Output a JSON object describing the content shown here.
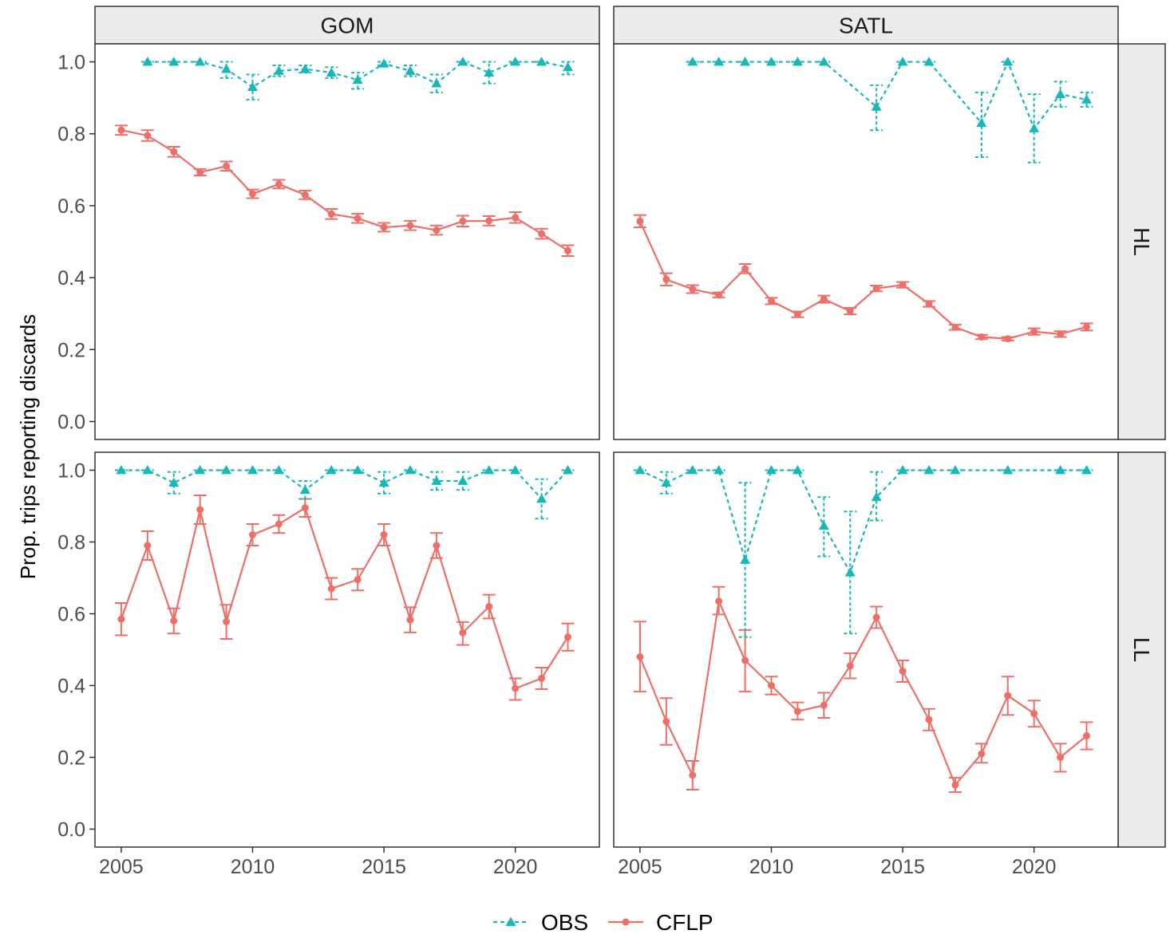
{
  "chart_data": {
    "type": "line",
    "ylabel": "Prop. trips reporting discards",
    "xlabel": "",
    "columns": [
      "GOM",
      "SATL"
    ],
    "rows": [
      "HL",
      "LL"
    ],
    "xlim": [
      2004.0,
      2023.2
    ],
    "ylim": [
      -0.05,
      1.05
    ],
    "xticks": [
      2005,
      2010,
      2015,
      2020
    ],
    "yticks": [
      0.0,
      0.2,
      0.4,
      0.6,
      0.8,
      1.0
    ],
    "ytick_labels": [
      "0.0",
      "0.2",
      "0.4",
      "0.6",
      "0.8",
      "1.0"
    ],
    "legend": {
      "position": "bottom",
      "items": [
        "OBS",
        "CFLP"
      ]
    },
    "series_styles": {
      "OBS": {
        "color": "#18B8B8",
        "linestyle": "dashed",
        "marker": "triangle"
      },
      "CFLP": {
        "color": "#EE6F68",
        "linestyle": "solid",
        "marker": "circle"
      }
    },
    "panels": [
      {
        "col": "GOM",
        "row": "HL",
        "series": [
          {
            "name": "OBS",
            "x": [
              2006,
              2007,
              2008,
              2009,
              2010,
              2011,
              2012,
              2013,
              2014,
              2015,
              2016,
              2017,
              2018,
              2019,
              2020,
              2021,
              2022
            ],
            "y": [
              1.0,
              1.0,
              1.0,
              0.98,
              0.93,
              0.975,
              0.98,
              0.97,
              0.95,
              0.995,
              0.975,
              0.94,
              1.0,
              0.97,
              1.0,
              1.0,
              0.985
            ],
            "lo": [
              1.0,
              1.0,
              1.0,
              0.955,
              0.895,
              0.96,
              0.97,
              0.955,
              0.925,
              0.99,
              0.96,
              0.915,
              1.0,
              0.94,
              1.0,
              1.0,
              0.965
            ],
            "hi": [
              1.0,
              1.0,
              1.0,
              1.0,
              0.965,
              0.99,
              0.99,
              0.985,
              0.97,
              1.0,
              0.99,
              0.965,
              1.0,
              1.0,
              1.0,
              1.0,
              1.0
            ]
          },
          {
            "name": "CFLP",
            "x": [
              2005,
              2006,
              2007,
              2008,
              2009,
              2010,
              2011,
              2012,
              2013,
              2014,
              2015,
              2016,
              2017,
              2018,
              2019,
              2020,
              2021,
              2022
            ],
            "y": [
              0.81,
              0.795,
              0.75,
              0.693,
              0.71,
              0.633,
              0.66,
              0.63,
              0.577,
              0.565,
              0.54,
              0.545,
              0.532,
              0.557,
              0.558,
              0.567,
              0.522,
              0.475
            ],
            "lo": [
              0.797,
              0.78,
              0.736,
              0.684,
              0.697,
              0.621,
              0.648,
              0.618,
              0.563,
              0.552,
              0.528,
              0.532,
              0.519,
              0.542,
              0.545,
              0.552,
              0.508,
              0.46
            ],
            "hi": [
              0.823,
              0.81,
              0.764,
              0.702,
              0.723,
              0.645,
              0.672,
              0.642,
              0.591,
              0.578,
              0.552,
              0.558,
              0.545,
              0.572,
              0.571,
              0.582,
              0.536,
              0.49
            ]
          }
        ]
      },
      {
        "col": "SATL",
        "row": "HL",
        "series": [
          {
            "name": "OBS",
            "x": [
              2007,
              2008,
              2009,
              2010,
              2011,
              2012,
              2014,
              2015,
              2016,
              2018,
              2019,
              2020,
              2021,
              2022
            ],
            "y": [
              1.0,
              1.0,
              1.0,
              1.0,
              1.0,
              1.0,
              0.875,
              1.0,
              1.0,
              0.83,
              1.0,
              0.815,
              0.91,
              0.895
            ],
            "lo": [
              1.0,
              1.0,
              1.0,
              1.0,
              1.0,
              1.0,
              0.81,
              1.0,
              1.0,
              0.735,
              1.0,
              0.72,
              0.875,
              0.875
            ],
            "hi": [
              1.0,
              1.0,
              1.0,
              1.0,
              1.0,
              1.0,
              0.935,
              1.0,
              1.0,
              0.915,
              1.0,
              0.91,
              0.945,
              0.915
            ]
          },
          {
            "name": "CFLP",
            "x": [
              2005,
              2006,
              2007,
              2008,
              2009,
              2010,
              2011,
              2012,
              2013,
              2014,
              2015,
              2016,
              2017,
              2018,
              2019,
              2020,
              2021,
              2022
            ],
            "y": [
              0.557,
              0.395,
              0.368,
              0.352,
              0.425,
              0.335,
              0.298,
              0.34,
              0.307,
              0.37,
              0.38,
              0.327,
              0.262,
              0.235,
              0.23,
              0.25,
              0.243,
              0.263
            ],
            "lo": [
              0.54,
              0.378,
              0.357,
              0.345,
              0.412,
              0.326,
              0.29,
              0.33,
              0.298,
              0.362,
              0.372,
              0.319,
              0.255,
              0.229,
              0.225,
              0.241,
              0.235,
              0.253
            ],
            "hi": [
              0.574,
              0.412,
              0.379,
              0.359,
              0.438,
              0.344,
              0.306,
              0.35,
              0.316,
              0.378,
              0.388,
              0.335,
              0.269,
              0.241,
              0.235,
              0.259,
              0.251,
              0.273
            ]
          }
        ]
      },
      {
        "col": "GOM",
        "row": "LL",
        "series": [
          {
            "name": "OBS",
            "x": [
              2005,
              2006,
              2007,
              2008,
              2009,
              2010,
              2011,
              2012,
              2013,
              2014,
              2015,
              2016,
              2017,
              2018,
              2019,
              2020,
              2021,
              2022
            ],
            "y": [
              1.0,
              1.0,
              0.965,
              1.0,
              1.0,
              1.0,
              1.0,
              0.945,
              1.0,
              1.0,
              0.965,
              1.0,
              0.97,
              0.97,
              1.0,
              1.0,
              0.92,
              1.0
            ],
            "lo": [
              1.0,
              1.0,
              0.935,
              1.0,
              1.0,
              1.0,
              1.0,
              0.92,
              1.0,
              1.0,
              0.935,
              1.0,
              0.945,
              0.945,
              1.0,
              1.0,
              0.865,
              1.0
            ],
            "hi": [
              1.0,
              1.0,
              0.995,
              1.0,
              1.0,
              1.0,
              1.0,
              0.97,
              1.0,
              1.0,
              0.995,
              1.0,
              0.995,
              0.995,
              1.0,
              1.0,
              0.975,
              1.0
            ]
          },
          {
            "name": "CFLP",
            "x": [
              2005,
              2006,
              2007,
              2008,
              2009,
              2010,
              2011,
              2012,
              2013,
              2014,
              2015,
              2016,
              2017,
              2018,
              2019,
              2020,
              2021,
              2022
            ],
            "y": [
              0.585,
              0.79,
              0.58,
              0.89,
              0.578,
              0.82,
              0.85,
              0.895,
              0.67,
              0.695,
              0.82,
              0.583,
              0.79,
              0.547,
              0.62,
              0.392,
              0.42,
              0.535
            ],
            "lo": [
              0.54,
              0.75,
              0.545,
              0.85,
              0.53,
              0.79,
              0.825,
              0.87,
              0.64,
              0.665,
              0.79,
              0.548,
              0.755,
              0.513,
              0.587,
              0.36,
              0.39,
              0.497
            ],
            "hi": [
              0.63,
              0.83,
              0.615,
              0.93,
              0.625,
              0.85,
              0.875,
              0.92,
              0.7,
              0.725,
              0.85,
              0.618,
              0.825,
              0.577,
              0.653,
              0.42,
              0.45,
              0.573
            ]
          }
        ]
      },
      {
        "col": "SATL",
        "row": "LL",
        "series": [
          {
            "name": "OBS",
            "x": [
              2005,
              2006,
              2007,
              2008,
              2009,
              2010,
              2011,
              2012,
              2013,
              2014,
              2015,
              2016,
              2017,
              2019,
              2021,
              2022
            ],
            "y": [
              1.0,
              0.965,
              1.0,
              1.0,
              0.75,
              1.0,
              1.0,
              0.845,
              0.715,
              0.925,
              1.0,
              1.0,
              1.0,
              1.0,
              1.0,
              1.0
            ],
            "lo": [
              1.0,
              0.935,
              1.0,
              1.0,
              0.535,
              1.0,
              1.0,
              0.76,
              0.545,
              0.86,
              1.0,
              1.0,
              1.0,
              1.0,
              1.0,
              1.0
            ],
            "hi": [
              1.0,
              0.995,
              1.0,
              1.0,
              0.965,
              1.0,
              1.0,
              0.925,
              0.885,
              0.995,
              1.0,
              1.0,
              1.0,
              1.0,
              1.0,
              1.0
            ]
          },
          {
            "name": "CFLP",
            "x": [
              2005,
              2006,
              2007,
              2008,
              2009,
              2010,
              2011,
              2012,
              2013,
              2014,
              2015,
              2016,
              2017,
              2018,
              2019,
              2020,
              2021,
              2022
            ],
            "y": [
              0.48,
              0.3,
              0.15,
              0.635,
              0.47,
              0.4,
              0.328,
              0.345,
              0.455,
              0.59,
              0.44,
              0.305,
              0.123,
              0.21,
              0.372,
              0.322,
              0.2,
              0.26
            ],
            "lo": [
              0.383,
              0.235,
              0.11,
              0.598,
              0.383,
              0.375,
              0.305,
              0.31,
              0.42,
              0.56,
              0.41,
              0.275,
              0.103,
              0.185,
              0.318,
              0.285,
              0.16,
              0.222
            ],
            "hi": [
              0.578,
              0.365,
              0.19,
              0.675,
              0.555,
              0.425,
              0.353,
              0.38,
              0.49,
              0.62,
              0.47,
              0.335,
              0.143,
              0.238,
              0.425,
              0.358,
              0.238,
              0.298
            ]
          }
        ]
      }
    ]
  }
}
